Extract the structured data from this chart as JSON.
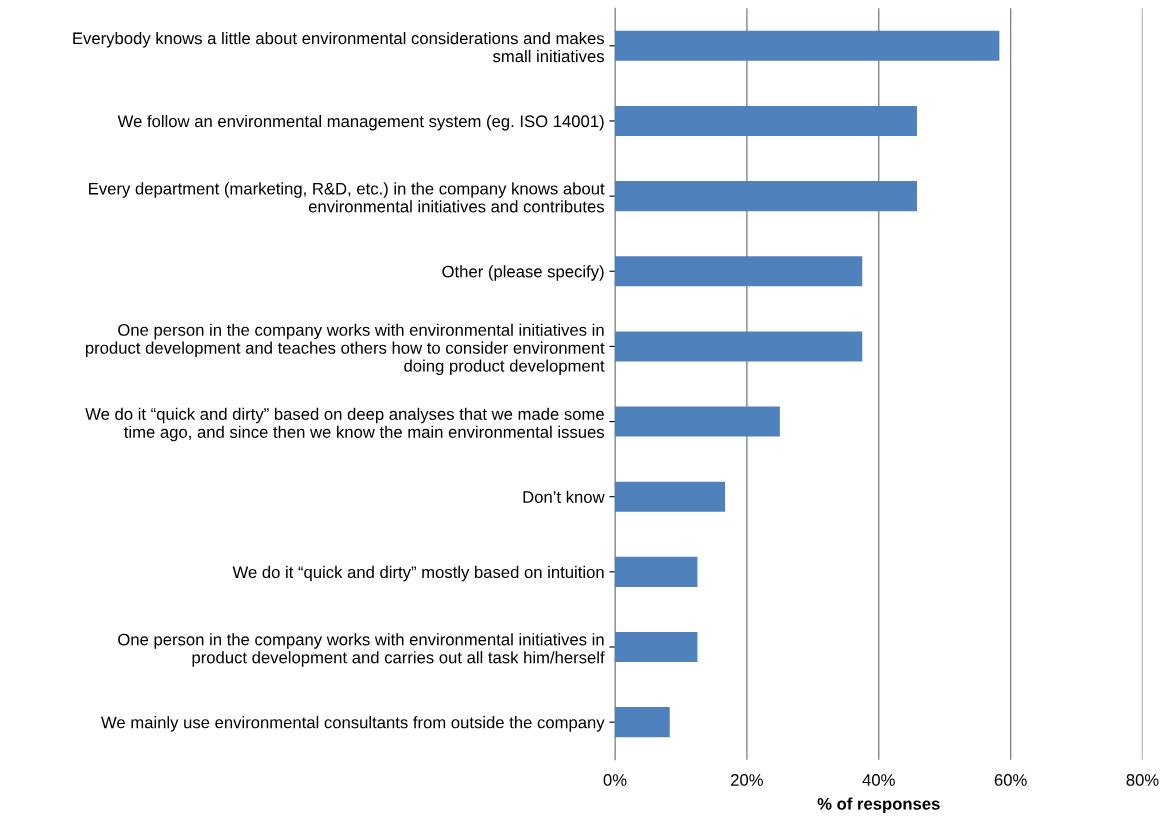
{
  "chart_data": {
    "type": "bar",
    "orientation": "horizontal",
    "xlabel": "% of responses",
    "categories": [
      "Everybody knows a little about environmental considerations and makes\nsmall initiatives",
      "We follow an environmental management system (eg. ISO 14001)",
      "Every department (marketing, R&D, etc.) in the company knows about\nenvironmental initiatives and contributes",
      "Other (please specify)",
      "One person in the company works with environmental initiatives in\nproduct development and teaches others how to consider environment\ndoing product development",
      "We do it “quick and dirty” based on deep analyses that we made some\ntime ago, and since then we know the main environmental issues",
      "Don’t know",
      "We do it “quick and dirty” mostly based on intuition",
      "One person in the company works with environmental initiatives in\nproduct development and carries out all task him/herself",
      "We mainly use environmental consultants from outside the company"
    ],
    "values": [
      58.3,
      45.8,
      45.8,
      37.5,
      37.5,
      25.0,
      16.7,
      12.5,
      12.5,
      8.3
    ],
    "color": "#4f81bd",
    "xlim": [
      0,
      80
    ],
    "xticks": [
      {
        "value": 0,
        "label": "0%"
      },
      {
        "value": 20,
        "label": "20%"
      },
      {
        "value": 40,
        "label": "40%"
      },
      {
        "value": 60,
        "label": "60%"
      },
      {
        "value": 80,
        "label": "80%"
      }
    ],
    "grid": "x"
  }
}
